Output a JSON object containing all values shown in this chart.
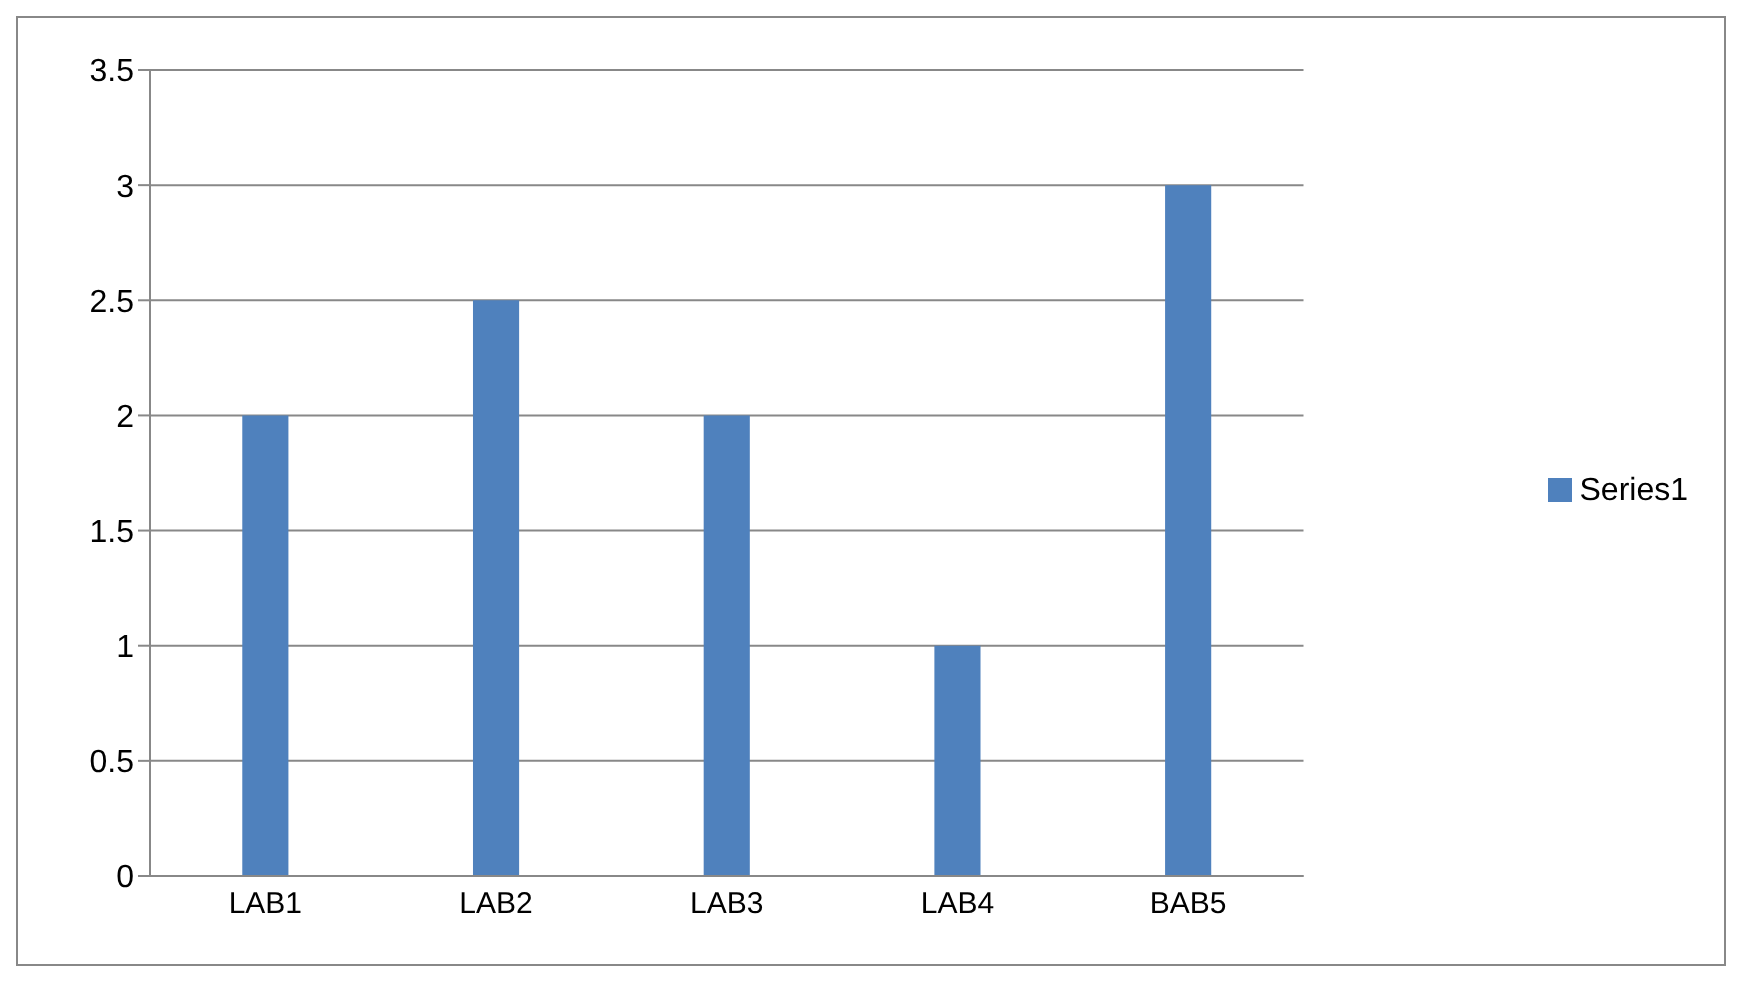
{
  "chart_data": {
    "type": "bar",
    "categories": [
      "LAB1",
      "LAB2",
      "LAB3",
      "LAB4",
      "BAB5"
    ],
    "series": [
      {
        "name": "Series1",
        "color": "#4f81bd",
        "values": [
          2,
          2.5,
          2,
          1,
          3
        ]
      }
    ],
    "ylim": [
      0,
      3.5
    ],
    "yticks": [
      0,
      0.5,
      1,
      1.5,
      2,
      2.5,
      3,
      3.5
    ],
    "grid": "y",
    "legend": "right"
  }
}
